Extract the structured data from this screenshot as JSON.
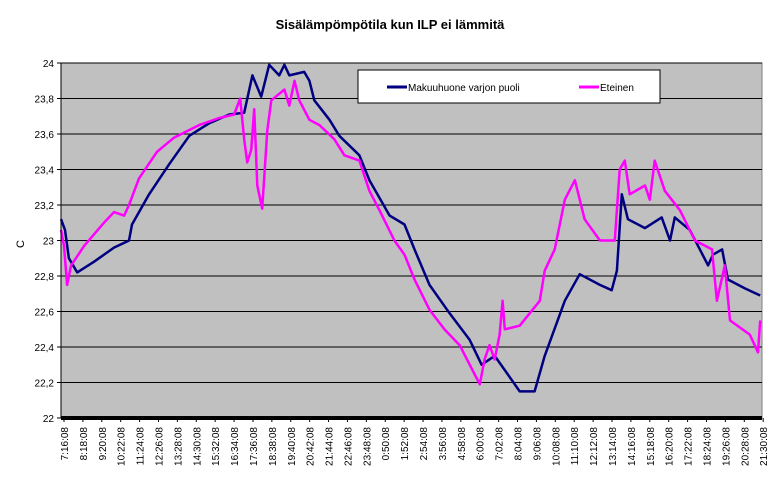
{
  "chart_data": {
    "type": "line",
    "title": "Sisälämpömpötila kun ILP ei lämmitä",
    "xlabel": "",
    "ylabel": "C",
    "ylim": [
      22,
      24
    ],
    "y_ticks": [
      "22",
      "22,2",
      "22,4",
      "22,6",
      "22,8",
      "23",
      "23,2",
      "23,4",
      "23,6",
      "23,8",
      "24"
    ],
    "x_unit": "minutes since 7:16:08",
    "xlim": [
      0,
      2300
    ],
    "x_tick_step_minutes": 62,
    "x_tick_labels": [
      "7:16:08",
      "8:18:08",
      "9:20:08",
      "10:22:08",
      "11:24:08",
      "12:26:08",
      "13:28:08",
      "14:30:08",
      "15:32:08",
      "16:34:08",
      "17:36:08",
      "18:38:08",
      "19:40:08",
      "20:42:08",
      "21:44:08",
      "22:46:08",
      "23:48:08",
      "0:50:08",
      "1:52:08",
      "2:54:08",
      "3:56:08",
      "4:58:08",
      "6:00:08",
      "7:02:08",
      "8:04:08",
      "9:06:08",
      "10:08:08",
      "11:10:08",
      "12:12:08",
      "13:14:08",
      "14:16:08",
      "15:18:08",
      "16:20:08",
      "17:22:08",
      "18:24:08",
      "19:26:08",
      "20:28:08",
      "21:30:08"
    ],
    "grid": true,
    "legend_position": "top-right",
    "series": [
      {
        "name": "Makuuhuone varjon puoli",
        "color": "#000080",
        "x": [
          0,
          13,
          26,
          53,
          108,
          174,
          223,
          233,
          289,
          355,
          421,
          486,
          552,
          601,
          628,
          657,
          683,
          716,
          733,
          749,
          798,
          815,
          831,
          881,
          913,
          979,
          1012,
          1078,
          1127,
          1160,
          1209,
          1275,
          1341,
          1380,
          1423,
          1456,
          1505,
          1554,
          1587,
          1653,
          1702,
          1768,
          1807,
          1824,
          1840,
          1860,
          1916,
          1971,
          1998,
          2014,
          2063,
          2123,
          2139,
          2169,
          2188,
          2244,
          2294
        ],
        "y": [
          23.12,
          23.06,
          22.9,
          22.82,
          22.88,
          22.96,
          23.0,
          23.09,
          23.26,
          23.43,
          23.59,
          23.66,
          23.71,
          23.72,
          23.93,
          23.81,
          23.99,
          23.93,
          23.99,
          23.93,
          23.95,
          23.9,
          23.79,
          23.68,
          23.59,
          23.48,
          23.34,
          23.14,
          23.09,
          22.95,
          22.75,
          22.59,
          22.44,
          22.3,
          22.35,
          22.27,
          22.15,
          22.15,
          22.35,
          22.66,
          22.81,
          22.75,
          22.72,
          22.83,
          23.26,
          23.12,
          23.07,
          23.13,
          23.0,
          23.13,
          23.06,
          22.86,
          22.92,
          22.95,
          22.78,
          22.73,
          22.69
        ]
      },
      {
        "name": "Eteinen",
        "color": "#FF00FF",
        "x": [
          0,
          10,
          20,
          33,
          76,
          141,
          174,
          207,
          223,
          256,
          315,
          371,
          453,
          519,
          568,
          588,
          601,
          611,
          624,
          634,
          644,
          660,
          677,
          690,
          733,
          749,
          766,
          782,
          815,
          848,
          897,
          930,
          979,
          1012,
          1045,
          1094,
          1127,
          1160,
          1209,
          1258,
          1308,
          1341,
          1374,
          1390,
          1406,
          1423,
          1439,
          1449,
          1456,
          1505,
          1571,
          1587,
          1620,
          1653,
          1686,
          1718,
          1768,
          1817,
          1833,
          1850,
          1866,
          1916,
          1932,
          1948,
          1981,
          2031,
          2080,
          2136,
          2152,
          2178,
          2195,
          2260,
          2287,
          2294
        ],
        "y": [
          23.06,
          22.97,
          22.75,
          22.86,
          22.97,
          23.1,
          23.16,
          23.14,
          23.2,
          23.35,
          23.5,
          23.58,
          23.65,
          23.69,
          23.71,
          23.8,
          23.57,
          23.44,
          23.51,
          23.74,
          23.31,
          23.18,
          23.62,
          23.79,
          23.85,
          23.76,
          23.9,
          23.79,
          23.68,
          23.65,
          23.57,
          23.48,
          23.45,
          23.28,
          23.17,
          23.0,
          22.92,
          22.78,
          22.61,
          22.5,
          22.41,
          22.3,
          22.19,
          22.33,
          22.41,
          22.33,
          22.47,
          22.66,
          22.5,
          22.52,
          22.66,
          22.83,
          22.95,
          23.23,
          23.34,
          23.12,
          23.0,
          23.0,
          23.4,
          23.45,
          23.26,
          23.31,
          23.23,
          23.45,
          23.28,
          23.17,
          23.0,
          22.95,
          22.66,
          22.86,
          22.55,
          22.47,
          22.37,
          22.55
        ]
      }
    ]
  }
}
